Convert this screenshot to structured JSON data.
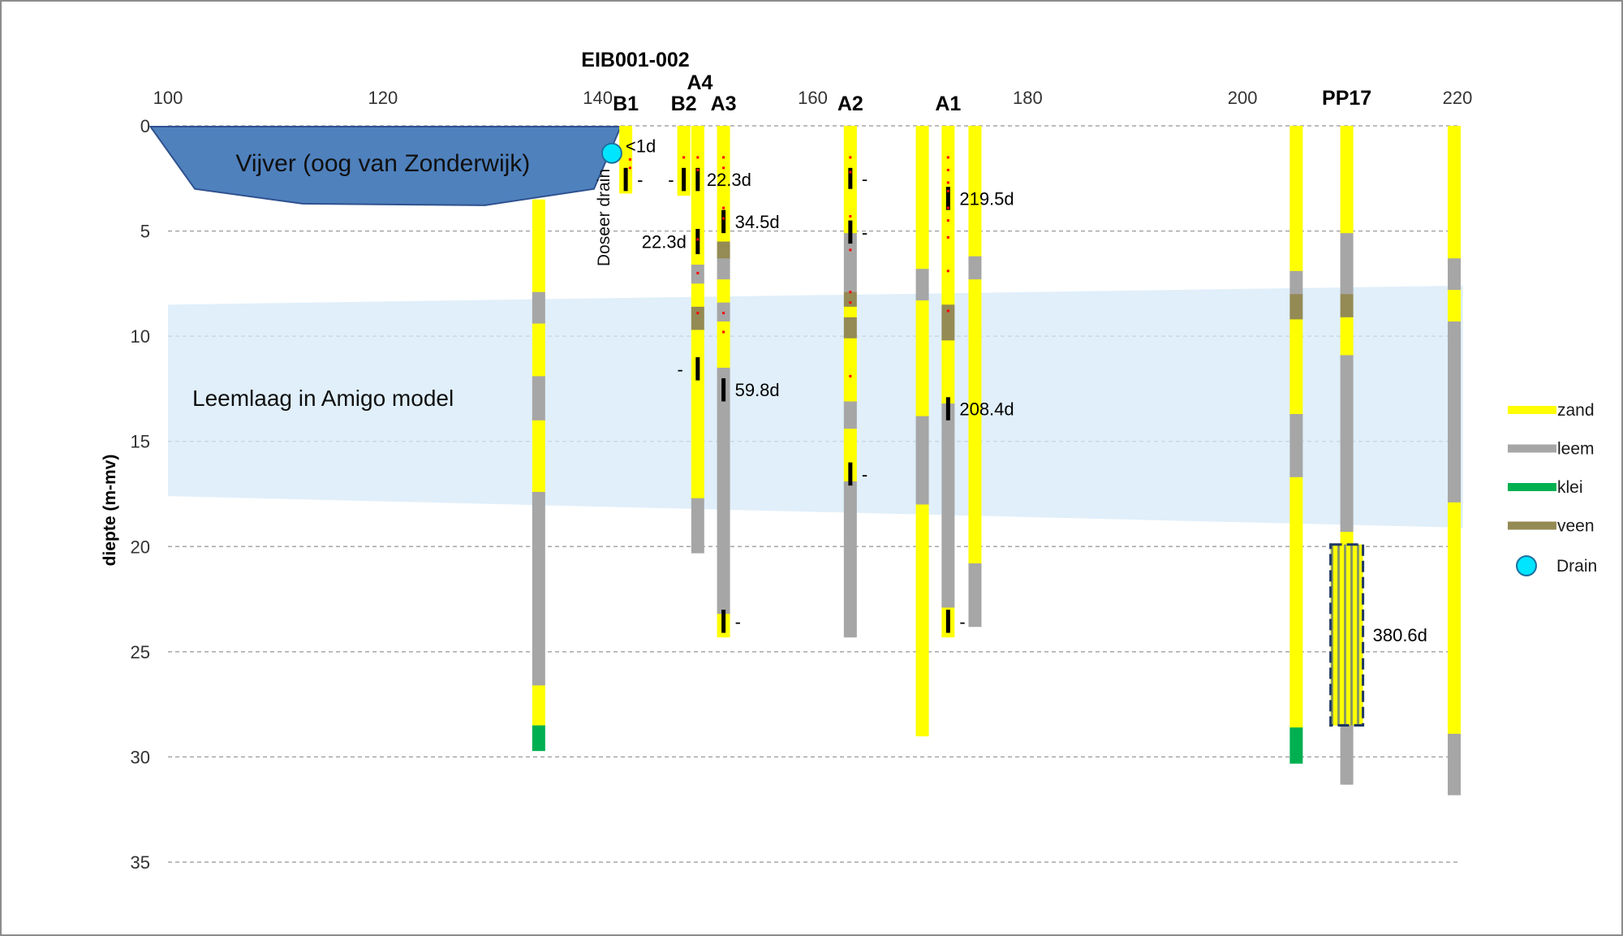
{
  "chart_data": {
    "type": "borehole-profile",
    "ylabel": "diepte (m-mv)",
    "xlim": [
      100,
      220
    ],
    "ylim": [
      0,
      35
    ],
    "xticks": [
      100,
      120,
      140,
      160,
      180,
      200,
      220
    ],
    "yticks": [
      0,
      5,
      10,
      15,
      20,
      25,
      30,
      35
    ],
    "grid": "horizontal-dashed",
    "legend_placement": "right",
    "legend": [
      {
        "key": "zand",
        "label": "zand",
        "color": "#ffff00"
      },
      {
        "key": "leem",
        "label": "leem",
        "color": "#a6a6a6"
      },
      {
        "key": "klei",
        "label": "klei",
        "color": "#00b050"
      },
      {
        "key": "veen",
        "label": "veen",
        "color": "#948a54"
      },
      {
        "key": "drain",
        "label": "Drain",
        "color": "#00e5ff"
      }
    ],
    "pond": {
      "label": "Vijver (oog van Zonderwijk)",
      "x_start": 99.5,
      "x_end": 141,
      "depth": 3.7,
      "color": "#4f81bd"
    },
    "model_layer": {
      "label": "Leemlaag in Amigo model",
      "x_start": 100,
      "x_end": 220.5,
      "top_start": 8.5,
      "top_end": 7.6,
      "bottom_start": 17.6,
      "bottom_end": 19.1,
      "color": "#d6eaf8"
    },
    "drain": {
      "x": 141.3,
      "depth": 1.3,
      "label": "Doseer drain",
      "travel_time": "<1d"
    },
    "group_labels": [
      {
        "text": "EIB001-002",
        "x": 143.5,
        "row": 1
      },
      {
        "text": "A4",
        "x": 149.5,
        "row": 2
      }
    ],
    "boreholes": [
      {
        "name": "",
        "x": 134.5,
        "layers": [
          {
            "top": 3.5,
            "bottom": 7.9,
            "soil": "zand"
          },
          {
            "top": 7.9,
            "bottom": 9.4,
            "soil": "leem"
          },
          {
            "top": 9.4,
            "bottom": 11.9,
            "soil": "zand"
          },
          {
            "top": 11.9,
            "bottom": 14,
            "soil": "leem"
          },
          {
            "top": 14,
            "bottom": 17.4,
            "soil": "zand"
          },
          {
            "top": 17.4,
            "bottom": 26.6,
            "soil": "leem"
          },
          {
            "top": 26.6,
            "bottom": 28.5,
            "soil": "zand"
          },
          {
            "top": 28.5,
            "bottom": 29.7,
            "soil": "klei"
          }
        ]
      },
      {
        "name": "B1",
        "x": 142.6,
        "layers": [
          {
            "top": 0,
            "bottom": 3.2,
            "soil": "zand"
          }
        ]
      },
      {
        "name": "B2",
        "x": 148,
        "layers": [
          {
            "top": 0,
            "bottom": 3.3,
            "soil": "zand"
          }
        ]
      },
      {
        "name": "",
        "x": 149.3,
        "layers": [
          {
            "top": 0,
            "bottom": 6.6,
            "soil": "zand"
          },
          {
            "top": 6.6,
            "bottom": 7.5,
            "soil": "leem"
          },
          {
            "top": 7.5,
            "bottom": 8.6,
            "soil": "zand"
          },
          {
            "top": 8.6,
            "bottom": 9.7,
            "soil": "veen"
          },
          {
            "top": 9.7,
            "bottom": 17.7,
            "soil": "zand"
          },
          {
            "top": 17.7,
            "bottom": 20.3,
            "soil": "leem"
          }
        ]
      },
      {
        "name": "A3",
        "x": 151.7,
        "layers": [
          {
            "top": 0,
            "bottom": 5.5,
            "soil": "zand"
          },
          {
            "top": 5.5,
            "bottom": 6.3,
            "soil": "veen"
          },
          {
            "top": 6.3,
            "bottom": 7.3,
            "soil": "leem"
          },
          {
            "top": 7.3,
            "bottom": 8.4,
            "soil": "zand"
          },
          {
            "top": 8.4,
            "bottom": 9.3,
            "soil": "leem"
          },
          {
            "top": 9.3,
            "bottom": 11.5,
            "soil": "zand"
          },
          {
            "top": 11.5,
            "bottom": 13.6,
            "soil": "leem"
          },
          {
            "top": 13.6,
            "bottom": 23.2,
            "soil": "leem"
          },
          {
            "top": 23.2,
            "bottom": 24.3,
            "soil": "zand"
          }
        ]
      },
      {
        "name": "A2",
        "x": 163.5,
        "layers": [
          {
            "top": 0,
            "bottom": 5.1,
            "soil": "zand"
          },
          {
            "top": 5.1,
            "bottom": 7.9,
            "soil": "leem"
          },
          {
            "top": 7.9,
            "bottom": 8.6,
            "soil": "veen"
          },
          {
            "top": 8.6,
            "bottom": 9.1,
            "soil": "zand"
          },
          {
            "top": 9.1,
            "bottom": 10.1,
            "soil": "veen"
          },
          {
            "top": 10.1,
            "bottom": 13.1,
            "soil": "zand"
          },
          {
            "top": 13.1,
            "bottom": 14.4,
            "soil": "leem"
          },
          {
            "top": 14.4,
            "bottom": 16.9,
            "soil": "zand"
          },
          {
            "top": 16.9,
            "bottom": 24.3,
            "soil": "leem"
          }
        ]
      },
      {
        "name": "",
        "x": 170.2,
        "layers": [
          {
            "top": 0,
            "bottom": 6.8,
            "soil": "zand"
          },
          {
            "top": 6.8,
            "bottom": 8.3,
            "soil": "leem"
          },
          {
            "top": 8.3,
            "bottom": 13.8,
            "soil": "zand"
          },
          {
            "top": 13.8,
            "bottom": 18,
            "soil": "leem"
          },
          {
            "top": 18,
            "bottom": 29,
            "soil": "zand"
          }
        ]
      },
      {
        "name": "A1",
        "x": 172.6,
        "layers": [
          {
            "top": 0,
            "bottom": 8.5,
            "soil": "zand"
          },
          {
            "top": 8.5,
            "bottom": 10.2,
            "soil": "veen"
          },
          {
            "top": 10.2,
            "bottom": 13.2,
            "soil": "zand"
          },
          {
            "top": 13.2,
            "bottom": 22.9,
            "soil": "leem"
          },
          {
            "top": 22.9,
            "bottom": 24.3,
            "soil": "zand"
          }
        ]
      },
      {
        "name": "",
        "x": 175.1,
        "layers": [
          {
            "top": 0,
            "bottom": 6.2,
            "soil": "zand"
          },
          {
            "top": 6.2,
            "bottom": 7.3,
            "soil": "leem"
          },
          {
            "top": 7.3,
            "bottom": 15.2,
            "soil": "zand"
          },
          {
            "top": 15.2,
            "bottom": 20.8,
            "soil": "zand"
          },
          {
            "top": 20.8,
            "bottom": 23.8,
            "soil": "leem"
          }
        ]
      },
      {
        "name": "",
        "x": 205,
        "layers": [
          {
            "top": 0,
            "bottom": 6.9,
            "soil": "zand"
          },
          {
            "top": 6.9,
            "bottom": 8,
            "soil": "leem"
          },
          {
            "top": 8,
            "bottom": 9.2,
            "soil": "veen"
          },
          {
            "top": 9.2,
            "bottom": 13.7,
            "soil": "zand"
          },
          {
            "top": 13.7,
            "bottom": 16.7,
            "soil": "leem"
          },
          {
            "top": 16.7,
            "bottom": 28.6,
            "soil": "zand"
          },
          {
            "top": 28.6,
            "bottom": 30.3,
            "soil": "klei"
          }
        ]
      },
      {
        "name": "PP17",
        "x": 209.7,
        "layers": [
          {
            "top": 0,
            "bottom": 5.1,
            "soil": "zand"
          },
          {
            "top": 5.1,
            "bottom": 8,
            "soil": "leem"
          },
          {
            "top": 8,
            "bottom": 9.1,
            "soil": "veen"
          },
          {
            "top": 9.1,
            "bottom": 10.9,
            "soil": "zand"
          },
          {
            "top": 10.9,
            "bottom": 19.3,
            "soil": "leem"
          },
          {
            "top": 19.3,
            "bottom": 28.5,
            "soil": "zand"
          },
          {
            "top": 28.5,
            "bottom": 31.3,
            "soil": "leem"
          }
        ]
      },
      {
        "name": "",
        "x": 219.7,
        "layers": [
          {
            "top": 0,
            "bottom": 6.3,
            "soil": "zand"
          },
          {
            "top": 6.3,
            "bottom": 7.8,
            "soil": "leem"
          },
          {
            "top": 7.8,
            "bottom": 9.3,
            "soil": "zand"
          },
          {
            "top": 9.3,
            "bottom": 17.9,
            "soil": "leem"
          },
          {
            "top": 17.9,
            "bottom": 28.9,
            "soil": "zand"
          },
          {
            "top": 28.9,
            "bottom": 31.8,
            "soil": "leem"
          }
        ]
      }
    ],
    "screens": [
      {
        "x": 142.6,
        "top": 2,
        "bottom": 3.1,
        "label": "-"
      },
      {
        "x": 148,
        "top": 2,
        "bottom": 3.1,
        "label": "-"
      },
      {
        "x": 149.3,
        "top": 2,
        "bottom": 3.1,
        "label": "22.3d"
      },
      {
        "x": 149.3,
        "top": 4.9,
        "bottom": 6.1,
        "label": "22.3d"
      },
      {
        "x": 149.3,
        "top": 11,
        "bottom": 12.1,
        "label": "-"
      },
      {
        "x": 151.7,
        "top": 4,
        "bottom": 5.1,
        "label": "34.5d"
      },
      {
        "x": 151.7,
        "top": 12,
        "bottom": 13.1,
        "label": "59.8d"
      },
      {
        "x": 151.7,
        "top": 23,
        "bottom": 24.1,
        "label": "-"
      },
      {
        "x": 163.5,
        "top": 2,
        "bottom": 3,
        "label": "-"
      },
      {
        "x": 163.5,
        "top": 4.5,
        "bottom": 5.6,
        "label": "-"
      },
      {
        "x": 163.5,
        "top": 16,
        "bottom": 17.1,
        "label": "-"
      },
      {
        "x": 172.6,
        "top": 2.9,
        "bottom": 4,
        "label": "219.5d"
      },
      {
        "x": 172.6,
        "top": 12.9,
        "bottom": 14,
        "label": "208.4d"
      },
      {
        "x": 172.6,
        "top": 23,
        "bottom": 24.1,
        "label": "-"
      },
      {
        "x": 209.7,
        "top": 19.9,
        "bottom": 28.5,
        "label": "380.6d",
        "wide": true
      }
    ],
    "sample_points": [
      {
        "x": 143,
        "depths": [
          1.6,
          2.0
        ]
      },
      {
        "x": 148,
        "depths": [
          1.5
        ]
      },
      {
        "x": 149.3,
        "depths": [
          1.5,
          2.1,
          5.4,
          7.0,
          8.9
        ]
      },
      {
        "x": 151.7,
        "depths": [
          1.5,
          2.0,
          3.9,
          4.4,
          8.9,
          9.8
        ]
      },
      {
        "x": 163.5,
        "depths": [
          1.5,
          2.2,
          4.3,
          5.9,
          7.9,
          8.4,
          11.9
        ]
      },
      {
        "x": 172.6,
        "depths": [
          1.5,
          2.1,
          2.7,
          3.1,
          3.9,
          4.5,
          5.3,
          6.9,
          8.8
        ]
      }
    ]
  }
}
